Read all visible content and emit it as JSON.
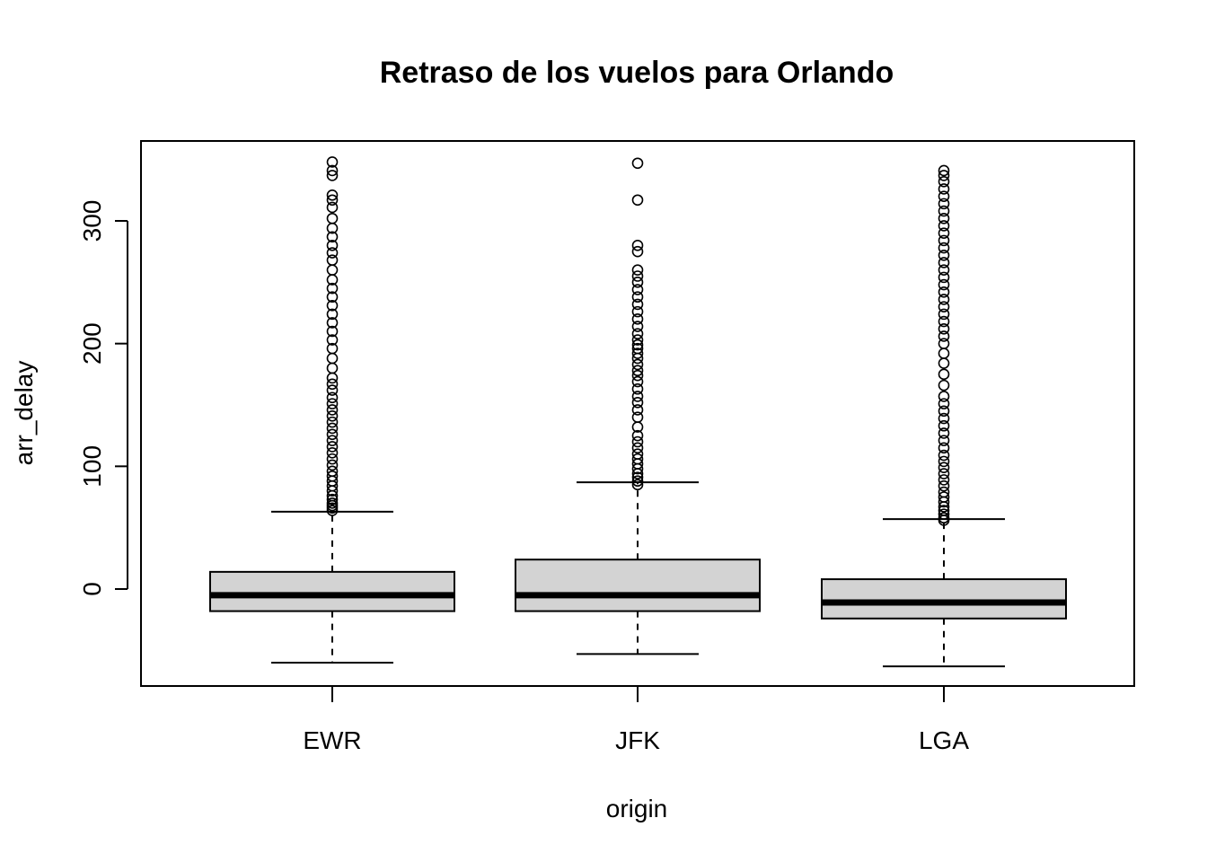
{
  "chart_data": {
    "type": "boxplot",
    "title": "Retraso de los vuelos para Orlando",
    "xlabel": "origin",
    "ylabel": "arr_delay",
    "ylim": [
      -78,
      365
    ],
    "yticks": [
      0,
      100,
      200,
      300
    ],
    "categories": [
      "EWR",
      "JFK",
      "LGA"
    ],
    "boxes": [
      {
        "category": "EWR",
        "whisker_low": -60,
        "q1": -18,
        "median": -5,
        "q3": 14,
        "whisker_high": 63,
        "outliers": [
          64,
          66,
          68,
          70,
          73,
          76,
          80,
          84,
          88,
          92,
          96,
          101,
          106,
          111,
          116,
          121,
          126,
          131,
          136,
          141,
          146,
          151,
          156,
          162,
          167,
          172,
          180,
          188,
          196,
          203,
          210,
          217,
          224,
          231,
          238,
          245,
          252,
          260,
          268,
          274,
          280,
          287,
          294,
          302,
          311,
          317,
          321,
          337,
          341,
          348
        ]
      },
      {
        "category": "JFK",
        "whisker_low": -53,
        "q1": -18,
        "median": -5,
        "q3": 24,
        "whisker_high": 87,
        "outliers": [
          85,
          88,
          91,
          94,
          98,
          102,
          106,
          110,
          115,
          120,
          125,
          132,
          140,
          146,
          152,
          157,
          163,
          169,
          174,
          178,
          183,
          188,
          192,
          196,
          199,
          203,
          208,
          214,
          220,
          226,
          232,
          238,
          244,
          250,
          255,
          260,
          275,
          280,
          317,
          347
        ]
      },
      {
        "category": "LGA",
        "whisker_low": -63,
        "q1": -24,
        "median": -11,
        "q3": 8,
        "whisker_high": 57,
        "outliers": [
          56,
          58,
          61,
          64,
          67,
          71,
          75,
          79,
          84,
          89,
          94,
          99,
          104,
          109,
          115,
          121,
          127,
          133,
          139,
          145,
          151,
          157,
          166,
          175,
          184,
          192,
          200,
          206,
          212,
          218,
          224,
          230,
          236,
          242,
          248,
          254,
          260,
          266,
          272,
          278,
          284,
          290,
          296,
          302,
          308,
          314,
          320,
          326,
          332,
          337,
          341
        ]
      }
    ],
    "grid": false,
    "legend": "none"
  }
}
